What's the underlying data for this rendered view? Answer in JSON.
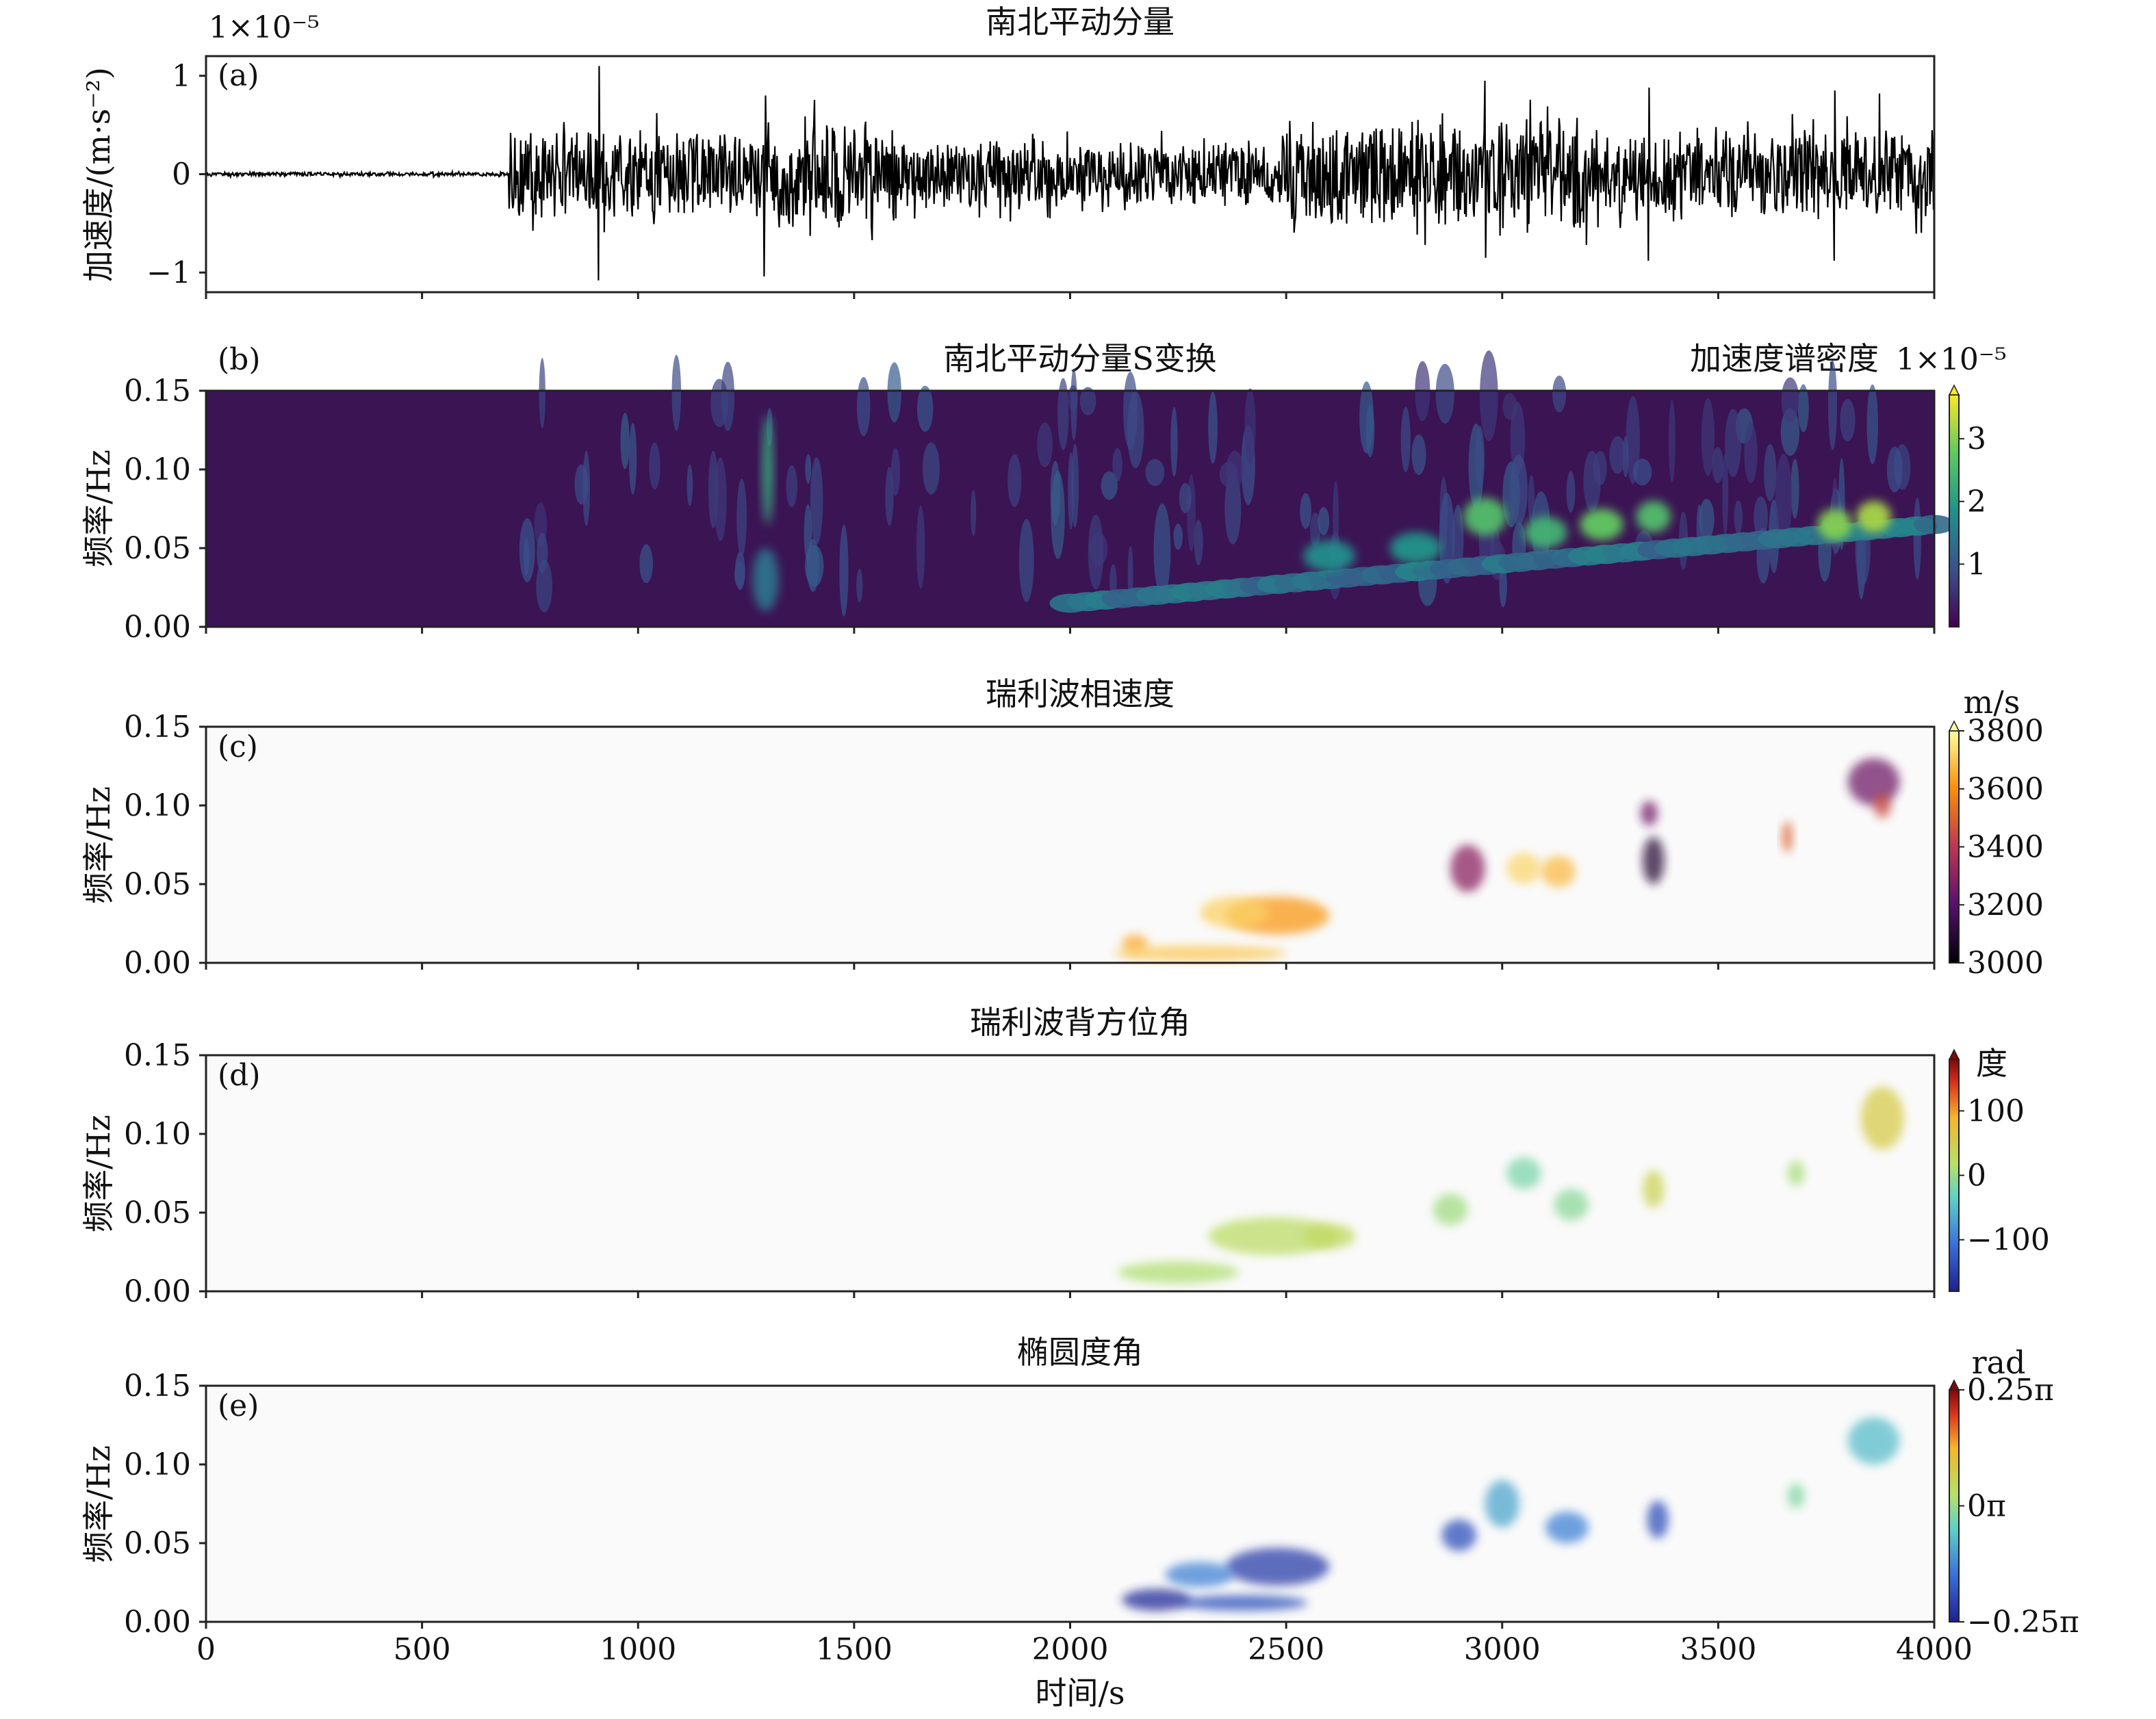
{
  "chart_data": [
    {
      "panel": "(a)",
      "type": "line",
      "title": "南北平动分量",
      "ylabel": "加速度/(m·s⁻²)",
      "y_multiplier": "1×10⁻⁵",
      "yticks": [
        "1",
        "0",
        "−1"
      ],
      "ytick_values": [
        1,
        0,
        -1
      ],
      "ylim": [
        -1.2,
        1.2
      ],
      "xlim": [
        0,
        4000
      ],
      "series": [
        {
          "segments": [
            {
              "t": [
                0,
                700
              ],
              "amplitude": 0.02
            },
            {
              "t": [
                700,
                1300
              ],
              "amplitude": 0.45
            },
            {
              "t": [
                1300,
                1600
              ],
              "amplitude": 0.55
            },
            {
              "t": [
                1600,
                2500
              ],
              "amplitude": 0.35
            },
            {
              "t": [
                2500,
                3200
              ],
              "amplitude": 0.55
            },
            {
              "t": [
                3200,
                4000
              ],
              "amplitude": 0.45
            }
          ],
          "peaks": [
            {
              "t": 910,
              "value": 1.1
            },
            {
              "t": 910,
              "value": -1.08
            },
            {
              "t": 1295,
              "value": 0.8
            },
            {
              "t": 1290,
              "value": -1.04
            },
            {
              "t": 2960,
              "value": 0.95
            },
            {
              "t": 2960,
              "value": -0.85
            },
            {
              "t": 3340,
              "value": 0.88
            },
            {
              "t": 3340,
              "value": -0.88
            },
            {
              "t": 3770,
              "value": 0.85
            },
            {
              "t": 3770,
              "value": -0.88
            },
            {
              "t": 3870,
              "value": 0.82
            }
          ]
        }
      ]
    },
    {
      "panel": "(b)",
      "type": "heatmap",
      "title": "南北平动分量S变换",
      "ylabel": "频率/Hz",
      "yticks": [
        "0.15",
        "0.10",
        "0.05",
        "0.00"
      ],
      "ytick_values": [
        0.15,
        0.1,
        0.05,
        0.0
      ],
      "ylim": [
        0,
        0.15
      ],
      "xlim": [
        0,
        4000
      ],
      "colorbar": {
        "label": "加速度谱密度",
        "multiplier": "1×10⁻⁵",
        "ticks": [
          "3",
          "2",
          "1"
        ],
        "tick_values": [
          3,
          2,
          1
        ],
        "range": [
          0,
          3.7
        ],
        "colormap": "viridis"
      },
      "background": "#3b1454",
      "blobs": [
        {
          "t": 1300,
          "f": 0.1,
          "dt": 12,
          "df": 0.035,
          "v": 2.2
        },
        {
          "t": 1295,
          "f": 0.03,
          "dt": 30,
          "df": 0.02,
          "v": 1.4
        },
        {
          "t": 2600,
          "f": 0.045,
          "dt": 60,
          "df": 0.01,
          "v": 1.8
        },
        {
          "t": 2800,
          "f": 0.05,
          "dt": 60,
          "df": 0.01,
          "v": 1.9
        },
        {
          "t": 2960,
          "f": 0.07,
          "dt": 50,
          "df": 0.012,
          "v": 2.6
        },
        {
          "t": 3100,
          "f": 0.06,
          "dt": 50,
          "df": 0.01,
          "v": 2.4
        },
        {
          "t": 3230,
          "f": 0.065,
          "dt": 50,
          "df": 0.01,
          "v": 2.8
        },
        {
          "t": 3350,
          "f": 0.07,
          "dt": 40,
          "df": 0.01,
          "v": 2.6
        },
        {
          "t": 3770,
          "f": 0.065,
          "dt": 40,
          "df": 0.01,
          "v": 3.0
        },
        {
          "t": 3860,
          "f": 0.07,
          "dt": 40,
          "df": 0.01,
          "v": 3.2
        }
      ]
    },
    {
      "panel": "(c)",
      "type": "heatmap",
      "title": "瑞利波相速度",
      "ylabel": "频率/Hz",
      "yticks": [
        "0.15",
        "0.10",
        "0.05",
        "0.00"
      ],
      "ytick_values": [
        0.15,
        0.1,
        0.05,
        0.0
      ],
      "ylim": [
        0,
        0.15
      ],
      "xlim": [
        0,
        4000
      ],
      "colorbar": {
        "label": "m/s",
        "ticks": [
          "3800",
          "3600",
          "3400",
          "3200",
          "3000"
        ],
        "tick_values": [
          3800,
          3600,
          3400,
          3200,
          3000
        ],
        "range": [
          3000,
          3800
        ],
        "colormap": "inferno"
      },
      "blobs": [
        {
          "t": 2150,
          "f": 0.012,
          "dt": 30,
          "df": 0.006,
          "v": 3650
        },
        {
          "t": 2300,
          "f": 0.006,
          "dt": 200,
          "df": 0.005,
          "v": 3700
        },
        {
          "t": 2480,
          "f": 0.03,
          "dt": 120,
          "df": 0.012,
          "v": 3620
        },
        {
          "t": 2380,
          "f": 0.032,
          "dt": 80,
          "df": 0.01,
          "v": 3720
        },
        {
          "t": 2920,
          "f": 0.06,
          "dt": 40,
          "df": 0.015,
          "v": 3300
        },
        {
          "t": 3050,
          "f": 0.06,
          "dt": 40,
          "df": 0.01,
          "v": 3730
        },
        {
          "t": 3130,
          "f": 0.058,
          "dt": 40,
          "df": 0.01,
          "v": 3680
        },
        {
          "t": 3350,
          "f": 0.065,
          "dt": 25,
          "df": 0.015,
          "v": 3100
        },
        {
          "t": 3340,
          "f": 0.095,
          "dt": 20,
          "df": 0.008,
          "v": 3260
        },
        {
          "t": 3660,
          "f": 0.08,
          "dt": 12,
          "df": 0.01,
          "v": 3500
        },
        {
          "t": 3860,
          "f": 0.115,
          "dt": 60,
          "df": 0.015,
          "v": 3250
        },
        {
          "t": 3880,
          "f": 0.1,
          "dt": 20,
          "df": 0.008,
          "v": 3450
        }
      ]
    },
    {
      "panel": "(d)",
      "type": "heatmap",
      "title": "瑞利波背方位角",
      "ylabel": "频率/Hz",
      "yticks": [
        "0.15",
        "0.10",
        "0.05",
        "0.00"
      ],
      "ytick_values": [
        0.15,
        0.1,
        0.05,
        0.0
      ],
      "ylim": [
        0,
        0.15
      ],
      "xlim": [
        0,
        4000
      ],
      "colorbar": {
        "label": "度",
        "ticks": [
          "100",
          "0",
          "−100"
        ],
        "tick_values": [
          100,
          0,
          -100
        ],
        "range": [
          -180,
          180
        ],
        "colormap": "jet"
      },
      "blobs": [
        {
          "t": 2250,
          "f": 0.012,
          "dt": 140,
          "df": 0.007,
          "v": -5
        },
        {
          "t": 2470,
          "f": 0.035,
          "dt": 150,
          "df": 0.012,
          "v": 5
        },
        {
          "t": 2600,
          "f": 0.035,
          "dt": 60,
          "df": 0.008,
          "v": 10
        },
        {
          "t": 2880,
          "f": 0.052,
          "dt": 40,
          "df": 0.01,
          "v": -15
        },
        {
          "t": 3050,
          "f": 0.075,
          "dt": 40,
          "df": 0.01,
          "v": -40
        },
        {
          "t": 3160,
          "f": 0.055,
          "dt": 40,
          "df": 0.01,
          "v": -30
        },
        {
          "t": 3350,
          "f": 0.065,
          "dt": 25,
          "df": 0.012,
          "v": 20
        },
        {
          "t": 3680,
          "f": 0.075,
          "dt": 20,
          "df": 0.008,
          "v": -10
        },
        {
          "t": 3880,
          "f": 0.11,
          "dt": 50,
          "df": 0.02,
          "v": 30
        }
      ]
    },
    {
      "panel": "(e)",
      "type": "heatmap",
      "title": "椭圆度角",
      "ylabel": "频率/Hz",
      "yticks": [
        "0.15",
        "0.10",
        "0.05",
        "0.00"
      ],
      "ytick_values": [
        0.15,
        0.1,
        0.05,
        0.0
      ],
      "ylim": [
        0,
        0.15
      ],
      "xlim": [
        0,
        4000
      ],
      "xticks": [
        "0",
        "500",
        "1000",
        "1500",
        "2000",
        "2500",
        "3000",
        "3500",
        "4000"
      ],
      "xtick_values": [
        0,
        500,
        1000,
        1500,
        2000,
        2500,
        3000,
        3500,
        4000
      ],
      "xlabel": "时间/s",
      "colorbar": {
        "label": "rad",
        "ticks": [
          "0.25π",
          "0π",
          "−0.25π"
        ],
        "tick_values": [
          0.25,
          0,
          -0.25
        ],
        "range": [
          -0.25,
          0.25
        ],
        "colormap": "jet"
      },
      "blobs": [
        {
          "t": 2200,
          "f": 0.014,
          "dt": 80,
          "df": 0.007,
          "v": -0.24
        },
        {
          "t": 2400,
          "f": 0.012,
          "dt": 150,
          "df": 0.005,
          "v": -0.2
        },
        {
          "t": 2480,
          "f": 0.035,
          "dt": 120,
          "df": 0.012,
          "v": -0.22
        },
        {
          "t": 2300,
          "f": 0.03,
          "dt": 80,
          "df": 0.008,
          "v": -0.15
        },
        {
          "t": 2900,
          "f": 0.055,
          "dt": 40,
          "df": 0.01,
          "v": -0.2
        },
        {
          "t": 3000,
          "f": 0.075,
          "dt": 40,
          "df": 0.015,
          "v": -0.12
        },
        {
          "t": 3150,
          "f": 0.06,
          "dt": 50,
          "df": 0.01,
          "v": -0.15
        },
        {
          "t": 3360,
          "f": 0.065,
          "dt": 25,
          "df": 0.012,
          "v": -0.2
        },
        {
          "t": 3680,
          "f": 0.08,
          "dt": 20,
          "df": 0.008,
          "v": -0.05
        },
        {
          "t": 3860,
          "f": 0.115,
          "dt": 60,
          "df": 0.015,
          "v": -0.1
        }
      ]
    }
  ]
}
